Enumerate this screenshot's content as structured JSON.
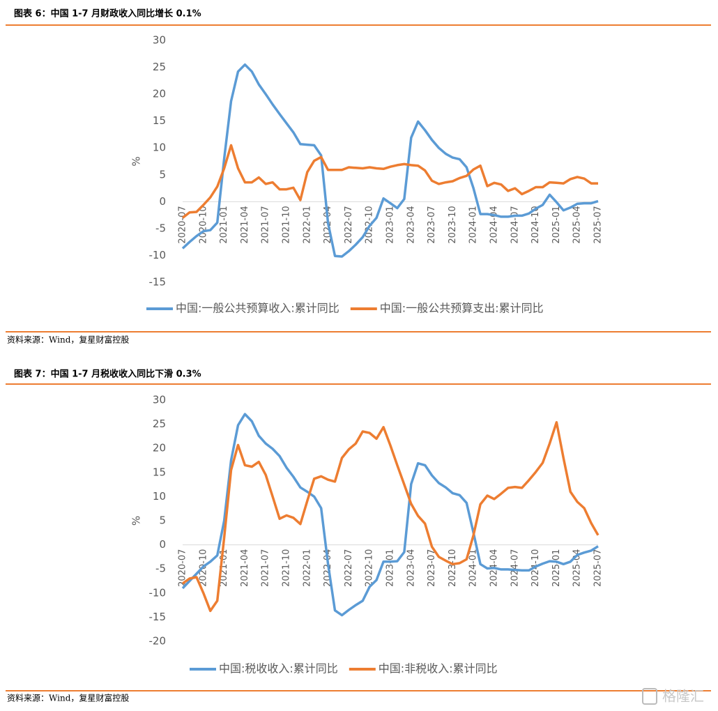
{
  "chart_data": [
    {
      "type": "line",
      "title": "图表 6：中国 1-7 月财政收入同比增长 0.1%",
      "source": "资料来源：Wind，复星财富控股",
      "ylabel": "%",
      "categories": [
        "2020-07",
        null,
        null,
        "2020-10",
        null,
        null,
        "2021-01",
        null,
        null,
        "2021-04",
        null,
        null,
        "2021-07",
        null,
        null,
        "2021-10",
        null,
        null,
        "2022-01",
        null,
        null,
        "2022-04",
        null,
        null,
        "2022-07",
        null,
        null,
        "2022-10",
        null,
        null,
        "2023-01",
        null,
        null,
        "2023-04",
        null,
        null,
        "2023-07",
        null,
        null,
        "2023-10",
        null,
        null,
        "2024-01",
        null,
        null,
        "2024-04",
        null,
        null,
        "2024-07",
        null,
        null,
        "2024-10",
        null,
        null,
        "2025-01",
        null,
        null,
        "2025-04",
        null,
        null,
        "2025-07"
      ],
      "series": [
        {
          "name": "中国:一般公共预算收入:累计同比",
          "color": "#5b9bd5",
          "values": [
            -8.7,
            -7.5,
            -6.4,
            -5.5,
            -5.3,
            -3.9,
            8,
            18.7,
            24.2,
            25.5,
            24.2,
            21.8,
            20,
            18.1,
            16.3,
            14.6,
            12.9,
            10.7,
            10.6,
            10.5,
            8.6,
            -4,
            -10.1,
            -10.2,
            -9.2,
            -8,
            -6.6,
            -4.5,
            -3,
            0.6,
            -0.3,
            -1.2,
            0.5,
            11.9,
            14.9,
            13.3,
            11.5,
            10,
            8.9,
            8.2,
            7.9,
            6.4,
            2.5,
            -2.3,
            -2.3,
            -2.5,
            -2.8,
            -2.8,
            -2.6,
            -2.6,
            -2.2,
            -1.3,
            -0.6,
            1.3,
            -0.1,
            -1.6,
            -1.1,
            -0.4,
            -0.3,
            -0.3,
            0.1
          ]
        },
        {
          "name": "中国:一般公共预算支出:累计同比",
          "color": "#ed7d31",
          "values": [
            -3.0,
            -2.0,
            -1.9,
            -0.6,
            0.8,
            2.8,
            6.2,
            10.5,
            6.2,
            3.6,
            3.6,
            4.5,
            3.3,
            3.6,
            2.3,
            2.3,
            2.6,
            0.3,
            5.5,
            7.6,
            8.3,
            5.9,
            5.9,
            5.9,
            6.4,
            6.3,
            6.2,
            6.4,
            6.2,
            6.1,
            6.5,
            6.8,
            7.0,
            6.8,
            6.7,
            5.8,
            3.9,
            3.3,
            3.6,
            3.8,
            4.4,
            4.8,
            6.0,
            6.7,
            2.9,
            3.5,
            3.2,
            2.0,
            2.5,
            1.4,
            2.0,
            2.7,
            2.7,
            3.6,
            3.5,
            3.4,
            4.2,
            4.6,
            4.3,
            3.4,
            3.4
          ]
        }
      ],
      "ylim": [
        -15,
        30
      ],
      "yticks": [
        30,
        25,
        20,
        15,
        10,
        5,
        0,
        -5,
        -10,
        -15
      ],
      "grid": false,
      "legend": "bottom"
    },
    {
      "type": "line",
      "title": "图表 7：中国 1-7 月税收收入同比下滑 0.3%",
      "source": "资料来源：Wind，复星财富控股",
      "ylabel": "%",
      "categories": [
        "2020-07",
        null,
        null,
        "2020-10",
        null,
        null,
        "2021-01",
        null,
        null,
        "2021-04",
        null,
        null,
        "2021-07",
        null,
        null,
        "2021-10",
        null,
        null,
        "2022-01",
        null,
        null,
        "2022-04",
        null,
        null,
        "2022-07",
        null,
        null,
        "2022-10",
        null,
        null,
        "2023-01",
        null,
        null,
        "2023-04",
        null,
        null,
        "2023-07",
        null,
        null,
        "2023-10",
        null,
        null,
        "2024-01",
        null,
        null,
        "2024-04",
        null,
        null,
        "2024-07",
        null,
        null,
        "2024-10",
        null,
        null,
        "2025-01",
        null,
        null,
        "2025-04",
        null,
        null,
        "2025-07"
      ],
      "series": [
        {
          "name": "中国:税收收入:累计同比",
          "color": "#5b9bd5",
          "values": [
            -9,
            -7.5,
            -6,
            -4.5,
            -3.5,
            -2.2,
            5,
            17.5,
            24.8,
            27.1,
            25.6,
            22.6,
            21.0,
            19.9,
            18.4,
            16.0,
            14.1,
            11.9,
            11.0,
            10.0,
            7.6,
            -4,
            -13.6,
            -14.6,
            -13.5,
            -12.5,
            -11.6,
            -8.7,
            -7.3,
            -3.5,
            -3.5,
            -3.4,
            -1.5,
            12.6,
            16.9,
            16.5,
            14.4,
            12.8,
            11.9,
            10.7,
            10.3,
            8.7,
            2.5,
            -4.0,
            -4.9,
            -4.8,
            -5.1,
            -5.1,
            -5.2,
            -5.3,
            -5.3,
            -4.5,
            -3.9,
            -3.4,
            -3.5,
            -4.0,
            -3.5,
            -2.1,
            -1.6,
            -1.2,
            -0.3
          ]
        },
        {
          "name": "中国:非税收入:累计同比",
          "color": "#ed7d31",
          "values": [
            -8,
            -7,
            -6.7,
            -10,
            -13.7,
            -11.6,
            1.5,
            15.5,
            20.7,
            16.5,
            16.2,
            17.2,
            14.5,
            10,
            5.4,
            6.1,
            5.6,
            4.3,
            9.1,
            13.7,
            14.2,
            13.5,
            13.1,
            18.0,
            19.8,
            21,
            23.5,
            23.2,
            22.0,
            24.4,
            20.6,
            16.5,
            12.5,
            8.5,
            6.0,
            4.4,
            -0.4,
            -2.5,
            -3.3,
            -4.0,
            -3.8,
            -3.0,
            2.0,
            8.4,
            10.2,
            9.5,
            10.6,
            11.8,
            12.0,
            11.8,
            13.4,
            15.1,
            17.0,
            21.0,
            25.4,
            18.0,
            11.0,
            8.9,
            7.6,
            4.5,
            2.0
          ]
        }
      ],
      "ylim": [
        -20,
        30
      ],
      "yticks": [
        30,
        25,
        20,
        15,
        10,
        5,
        0,
        -5,
        -10,
        -15,
        -20
      ],
      "grid": false,
      "legend": "bottom"
    }
  ],
  "watermark": "格隆汇"
}
